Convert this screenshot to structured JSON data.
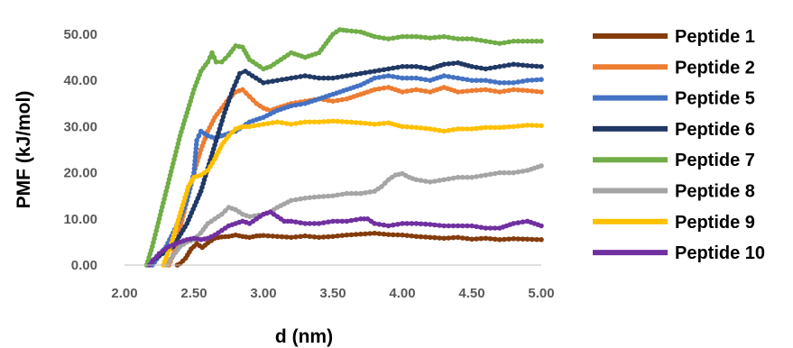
{
  "chart_data": {
    "type": "line",
    "xlabel": "d (nm)",
    "ylabel": "PMF (kJ/mol)",
    "xlim": [
      2.0,
      5.0
    ],
    "ylim": [
      0,
      50
    ],
    "x_ticks": [
      "2.00",
      "2.50",
      "3.00",
      "3.50",
      "4.00",
      "4.50",
      "5.00"
    ],
    "x_tick_values": [
      2.0,
      2.5,
      3.0,
      3.5,
      4.0,
      4.5,
      5.0
    ],
    "y_ticks": [
      "0.00",
      "10.00",
      "20.00",
      "30.00",
      "40.00",
      "50.00"
    ],
    "y_tick_values": [
      0,
      10,
      20,
      30,
      40,
      50
    ],
    "grid": false,
    "legend_position": "right",
    "series": [
      {
        "name": "Peptide 1",
        "color": "#843C0C",
        "points": [
          [
            2.38,
            0
          ],
          [
            2.4,
            0.3
          ],
          [
            2.44,
            1.5
          ],
          [
            2.48,
            3.5
          ],
          [
            2.52,
            4.6
          ],
          [
            2.56,
            3.8
          ],
          [
            2.6,
            4.8
          ],
          [
            2.65,
            5.8
          ],
          [
            2.7,
            6.1
          ],
          [
            2.75,
            6.2
          ],
          [
            2.8,
            6.5
          ],
          [
            2.85,
            6.2
          ],
          [
            2.9,
            6.0
          ],
          [
            2.95,
            6.3
          ],
          [
            3.0,
            6.4
          ],
          [
            3.1,
            6.2
          ],
          [
            3.2,
            6.0
          ],
          [
            3.3,
            6.3
          ],
          [
            3.4,
            6.0
          ],
          [
            3.5,
            6.2
          ],
          [
            3.6,
            6.5
          ],
          [
            3.7,
            6.7
          ],
          [
            3.8,
            6.9
          ],
          [
            3.9,
            6.6
          ],
          [
            4.0,
            6.5
          ],
          [
            4.1,
            6.2
          ],
          [
            4.2,
            6.0
          ],
          [
            4.3,
            5.8
          ],
          [
            4.4,
            6.0
          ],
          [
            4.5,
            5.6
          ],
          [
            4.6,
            5.8
          ],
          [
            4.7,
            5.5
          ],
          [
            4.8,
            5.7
          ],
          [
            4.9,
            5.6
          ],
          [
            5.0,
            5.5
          ]
        ]
      },
      {
        "name": "Peptide 2",
        "color": "#ED7D31",
        "points": [
          [
            2.32,
            0
          ],
          [
            2.36,
            3
          ],
          [
            2.4,
            8
          ],
          [
            2.45,
            14
          ],
          [
            2.5,
            20
          ],
          [
            2.55,
            25
          ],
          [
            2.6,
            29
          ],
          [
            2.65,
            32
          ],
          [
            2.7,
            34
          ],
          [
            2.75,
            36
          ],
          [
            2.8,
            37.5
          ],
          [
            2.85,
            38
          ],
          [
            2.9,
            36.5
          ],
          [
            2.95,
            35
          ],
          [
            3.0,
            34
          ],
          [
            3.05,
            33.5
          ],
          [
            3.1,
            34
          ],
          [
            3.2,
            35
          ],
          [
            3.3,
            35.5
          ],
          [
            3.4,
            36
          ],
          [
            3.5,
            35.5
          ],
          [
            3.6,
            36
          ],
          [
            3.7,
            37
          ],
          [
            3.8,
            38
          ],
          [
            3.9,
            38.5
          ],
          [
            4.0,
            37.5
          ],
          [
            4.1,
            38
          ],
          [
            4.2,
            37.5
          ],
          [
            4.3,
            38.5
          ],
          [
            4.4,
            37.5
          ],
          [
            4.5,
            37.8
          ],
          [
            4.6,
            38
          ],
          [
            4.7,
            37.5
          ],
          [
            4.8,
            38
          ],
          [
            4.9,
            37.8
          ],
          [
            5.0,
            37.5
          ]
        ]
      },
      {
        "name": "Peptide 5",
        "color": "#4472C4",
        "points": [
          [
            2.2,
            0
          ],
          [
            2.3,
            4
          ],
          [
            2.4,
            10
          ],
          [
            2.45,
            14
          ],
          [
            2.5,
            20
          ],
          [
            2.52,
            27
          ],
          [
            2.55,
            29
          ],
          [
            2.6,
            28
          ],
          [
            2.65,
            27.5
          ],
          [
            2.7,
            28
          ],
          [
            2.75,
            28.5
          ],
          [
            2.8,
            29
          ],
          [
            2.85,
            30
          ],
          [
            2.9,
            31
          ],
          [
            3.0,
            32
          ],
          [
            3.1,
            33.5
          ],
          [
            3.2,
            34.5
          ],
          [
            3.3,
            35
          ],
          [
            3.4,
            36
          ],
          [
            3.5,
            37
          ],
          [
            3.6,
            38
          ],
          [
            3.7,
            39
          ],
          [
            3.8,
            40.5
          ],
          [
            3.9,
            41
          ],
          [
            4.0,
            40.5
          ],
          [
            4.1,
            40.5
          ],
          [
            4.2,
            40
          ],
          [
            4.3,
            41
          ],
          [
            4.4,
            40.5
          ],
          [
            4.5,
            40
          ],
          [
            4.6,
            40
          ],
          [
            4.7,
            39.5
          ],
          [
            4.8,
            39.5
          ],
          [
            4.9,
            40
          ],
          [
            5.0,
            40.2
          ]
        ]
      },
      {
        "name": "Peptide 6",
        "color": "#203864",
        "points": [
          [
            2.16,
            0
          ],
          [
            2.25,
            2
          ],
          [
            2.35,
            4
          ],
          [
            2.45,
            9
          ],
          [
            2.55,
            16
          ],
          [
            2.65,
            26
          ],
          [
            2.72,
            33
          ],
          [
            2.78,
            38
          ],
          [
            2.83,
            41.5
          ],
          [
            2.87,
            42
          ],
          [
            2.92,
            41
          ],
          [
            3.0,
            39.5
          ],
          [
            3.1,
            40
          ],
          [
            3.2,
            40.5
          ],
          [
            3.3,
            41
          ],
          [
            3.4,
            40.5
          ],
          [
            3.5,
            40.5
          ],
          [
            3.6,
            41
          ],
          [
            3.7,
            41.5
          ],
          [
            3.8,
            42
          ],
          [
            3.9,
            42.5
          ],
          [
            4.0,
            43
          ],
          [
            4.1,
            43
          ],
          [
            4.2,
            42.5
          ],
          [
            4.3,
            43.5
          ],
          [
            4.4,
            43.8
          ],
          [
            4.5,
            43
          ],
          [
            4.6,
            42.5
          ],
          [
            4.7,
            43
          ],
          [
            4.8,
            43.5
          ],
          [
            4.9,
            43.2
          ],
          [
            5.0,
            43
          ]
        ]
      },
      {
        "name": "Peptide 7",
        "color": "#70AD47",
        "points": [
          [
            2.16,
            0
          ],
          [
            2.2,
            4
          ],
          [
            2.25,
            10
          ],
          [
            2.3,
            16
          ],
          [
            2.35,
            22
          ],
          [
            2.4,
            28
          ],
          [
            2.45,
            33
          ],
          [
            2.5,
            38
          ],
          [
            2.55,
            42
          ],
          [
            2.6,
            44
          ],
          [
            2.63,
            46
          ],
          [
            2.66,
            44
          ],
          [
            2.7,
            44
          ],
          [
            2.75,
            45.5
          ],
          [
            2.8,
            47.5
          ],
          [
            2.85,
            47.2
          ],
          [
            2.9,
            44.5
          ],
          [
            2.95,
            43.5
          ],
          [
            3.0,
            42.5
          ],
          [
            3.05,
            43
          ],
          [
            3.1,
            44
          ],
          [
            3.15,
            45
          ],
          [
            3.2,
            46
          ],
          [
            3.3,
            45
          ],
          [
            3.4,
            46
          ],
          [
            3.45,
            48
          ],
          [
            3.5,
            50
          ],
          [
            3.55,
            51
          ],
          [
            3.6,
            50.8
          ],
          [
            3.7,
            50.5
          ],
          [
            3.8,
            49.5
          ],
          [
            3.9,
            49
          ],
          [
            4.0,
            49.5
          ],
          [
            4.1,
            49.5
          ],
          [
            4.2,
            49.2
          ],
          [
            4.3,
            49.5
          ],
          [
            4.4,
            49
          ],
          [
            4.5,
            49
          ],
          [
            4.6,
            48.5
          ],
          [
            4.7,
            48
          ],
          [
            4.8,
            48.5
          ],
          [
            4.9,
            48.5
          ],
          [
            5.0,
            48.5
          ]
        ]
      },
      {
        "name": "Peptide 8",
        "color": "#A5A5A5",
        "points": [
          [
            2.3,
            0
          ],
          [
            2.35,
            2
          ],
          [
            2.4,
            4
          ],
          [
            2.45,
            5
          ],
          [
            2.5,
            5.5
          ],
          [
            2.55,
            7
          ],
          [
            2.6,
            9
          ],
          [
            2.65,
            10
          ],
          [
            2.7,
            11
          ],
          [
            2.75,
            12.5
          ],
          [
            2.8,
            12
          ],
          [
            2.85,
            11
          ],
          [
            2.9,
            10.5
          ],
          [
            3.0,
            11
          ],
          [
            3.05,
            11.5
          ],
          [
            3.1,
            12.5
          ],
          [
            3.2,
            14
          ],
          [
            3.3,
            14.5
          ],
          [
            3.4,
            14.8
          ],
          [
            3.5,
            15
          ],
          [
            3.6,
            15.5
          ],
          [
            3.7,
            15.5
          ],
          [
            3.8,
            16
          ],
          [
            3.85,
            17
          ],
          [
            3.9,
            18.5
          ],
          [
            3.95,
            19.5
          ],
          [
            4.0,
            19.8
          ],
          [
            4.05,
            19
          ],
          [
            4.1,
            18.5
          ],
          [
            4.2,
            18
          ],
          [
            4.3,
            18.5
          ],
          [
            4.4,
            19
          ],
          [
            4.5,
            19
          ],
          [
            4.6,
            19.5
          ],
          [
            4.7,
            20
          ],
          [
            4.8,
            20
          ],
          [
            4.9,
            20.5
          ],
          [
            5.0,
            21.5
          ]
        ]
      },
      {
        "name": "Peptide 9",
        "color": "#FFC000",
        "points": [
          [
            2.28,
            0
          ],
          [
            2.33,
            4
          ],
          [
            2.38,
            9
          ],
          [
            2.42,
            13
          ],
          [
            2.46,
            17
          ],
          [
            2.5,
            19
          ],
          [
            2.55,
            19.5
          ],
          [
            2.6,
            20.5
          ],
          [
            2.65,
            23
          ],
          [
            2.7,
            26
          ],
          [
            2.75,
            28
          ],
          [
            2.8,
            29.5
          ],
          [
            2.85,
            30
          ],
          [
            2.9,
            30
          ],
          [
            3.0,
            30.5
          ],
          [
            3.1,
            31
          ],
          [
            3.2,
            30.5
          ],
          [
            3.3,
            31
          ],
          [
            3.4,
            31
          ],
          [
            3.5,
            31.2
          ],
          [
            3.6,
            31
          ],
          [
            3.7,
            30.8
          ],
          [
            3.8,
            30.5
          ],
          [
            3.9,
            30.8
          ],
          [
            4.0,
            30
          ],
          [
            4.1,
            29.8
          ],
          [
            4.2,
            29.5
          ],
          [
            4.3,
            29
          ],
          [
            4.4,
            29.5
          ],
          [
            4.5,
            29.5
          ],
          [
            4.6,
            29.8
          ],
          [
            4.7,
            29.8
          ],
          [
            4.8,
            30
          ],
          [
            4.9,
            30.3
          ],
          [
            5.0,
            30.2
          ]
        ]
      },
      {
        "name": "Peptide 10",
        "color": "#7030A0",
        "points": [
          [
            2.18,
            0
          ],
          [
            2.25,
            2.5
          ],
          [
            2.32,
            4
          ],
          [
            2.4,
            5
          ],
          [
            2.45,
            5.5
          ],
          [
            2.5,
            5.8
          ],
          [
            2.55,
            5.5
          ],
          [
            2.6,
            5.8
          ],
          [
            2.65,
            6.5
          ],
          [
            2.7,
            7.5
          ],
          [
            2.75,
            8.5
          ],
          [
            2.8,
            9
          ],
          [
            2.85,
            9.5
          ],
          [
            2.9,
            9
          ],
          [
            2.95,
            10
          ],
          [
            3.0,
            11
          ],
          [
            3.05,
            11.5
          ],
          [
            3.1,
            10.5
          ],
          [
            3.15,
            9.5
          ],
          [
            3.2,
            9.5
          ],
          [
            3.3,
            9
          ],
          [
            3.4,
            9
          ],
          [
            3.5,
            9.5
          ],
          [
            3.6,
            9.5
          ],
          [
            3.7,
            10
          ],
          [
            3.75,
            10
          ],
          [
            3.8,
            9
          ],
          [
            3.9,
            8.5
          ],
          [
            4.0,
            9
          ],
          [
            4.1,
            9
          ],
          [
            4.2,
            8.8
          ],
          [
            4.3,
            8.5
          ],
          [
            4.4,
            8.5
          ],
          [
            4.5,
            8.5
          ],
          [
            4.6,
            8
          ],
          [
            4.7,
            8
          ],
          [
            4.8,
            9
          ],
          [
            4.9,
            9.5
          ],
          [
            5.0,
            8.5
          ]
        ]
      }
    ]
  }
}
